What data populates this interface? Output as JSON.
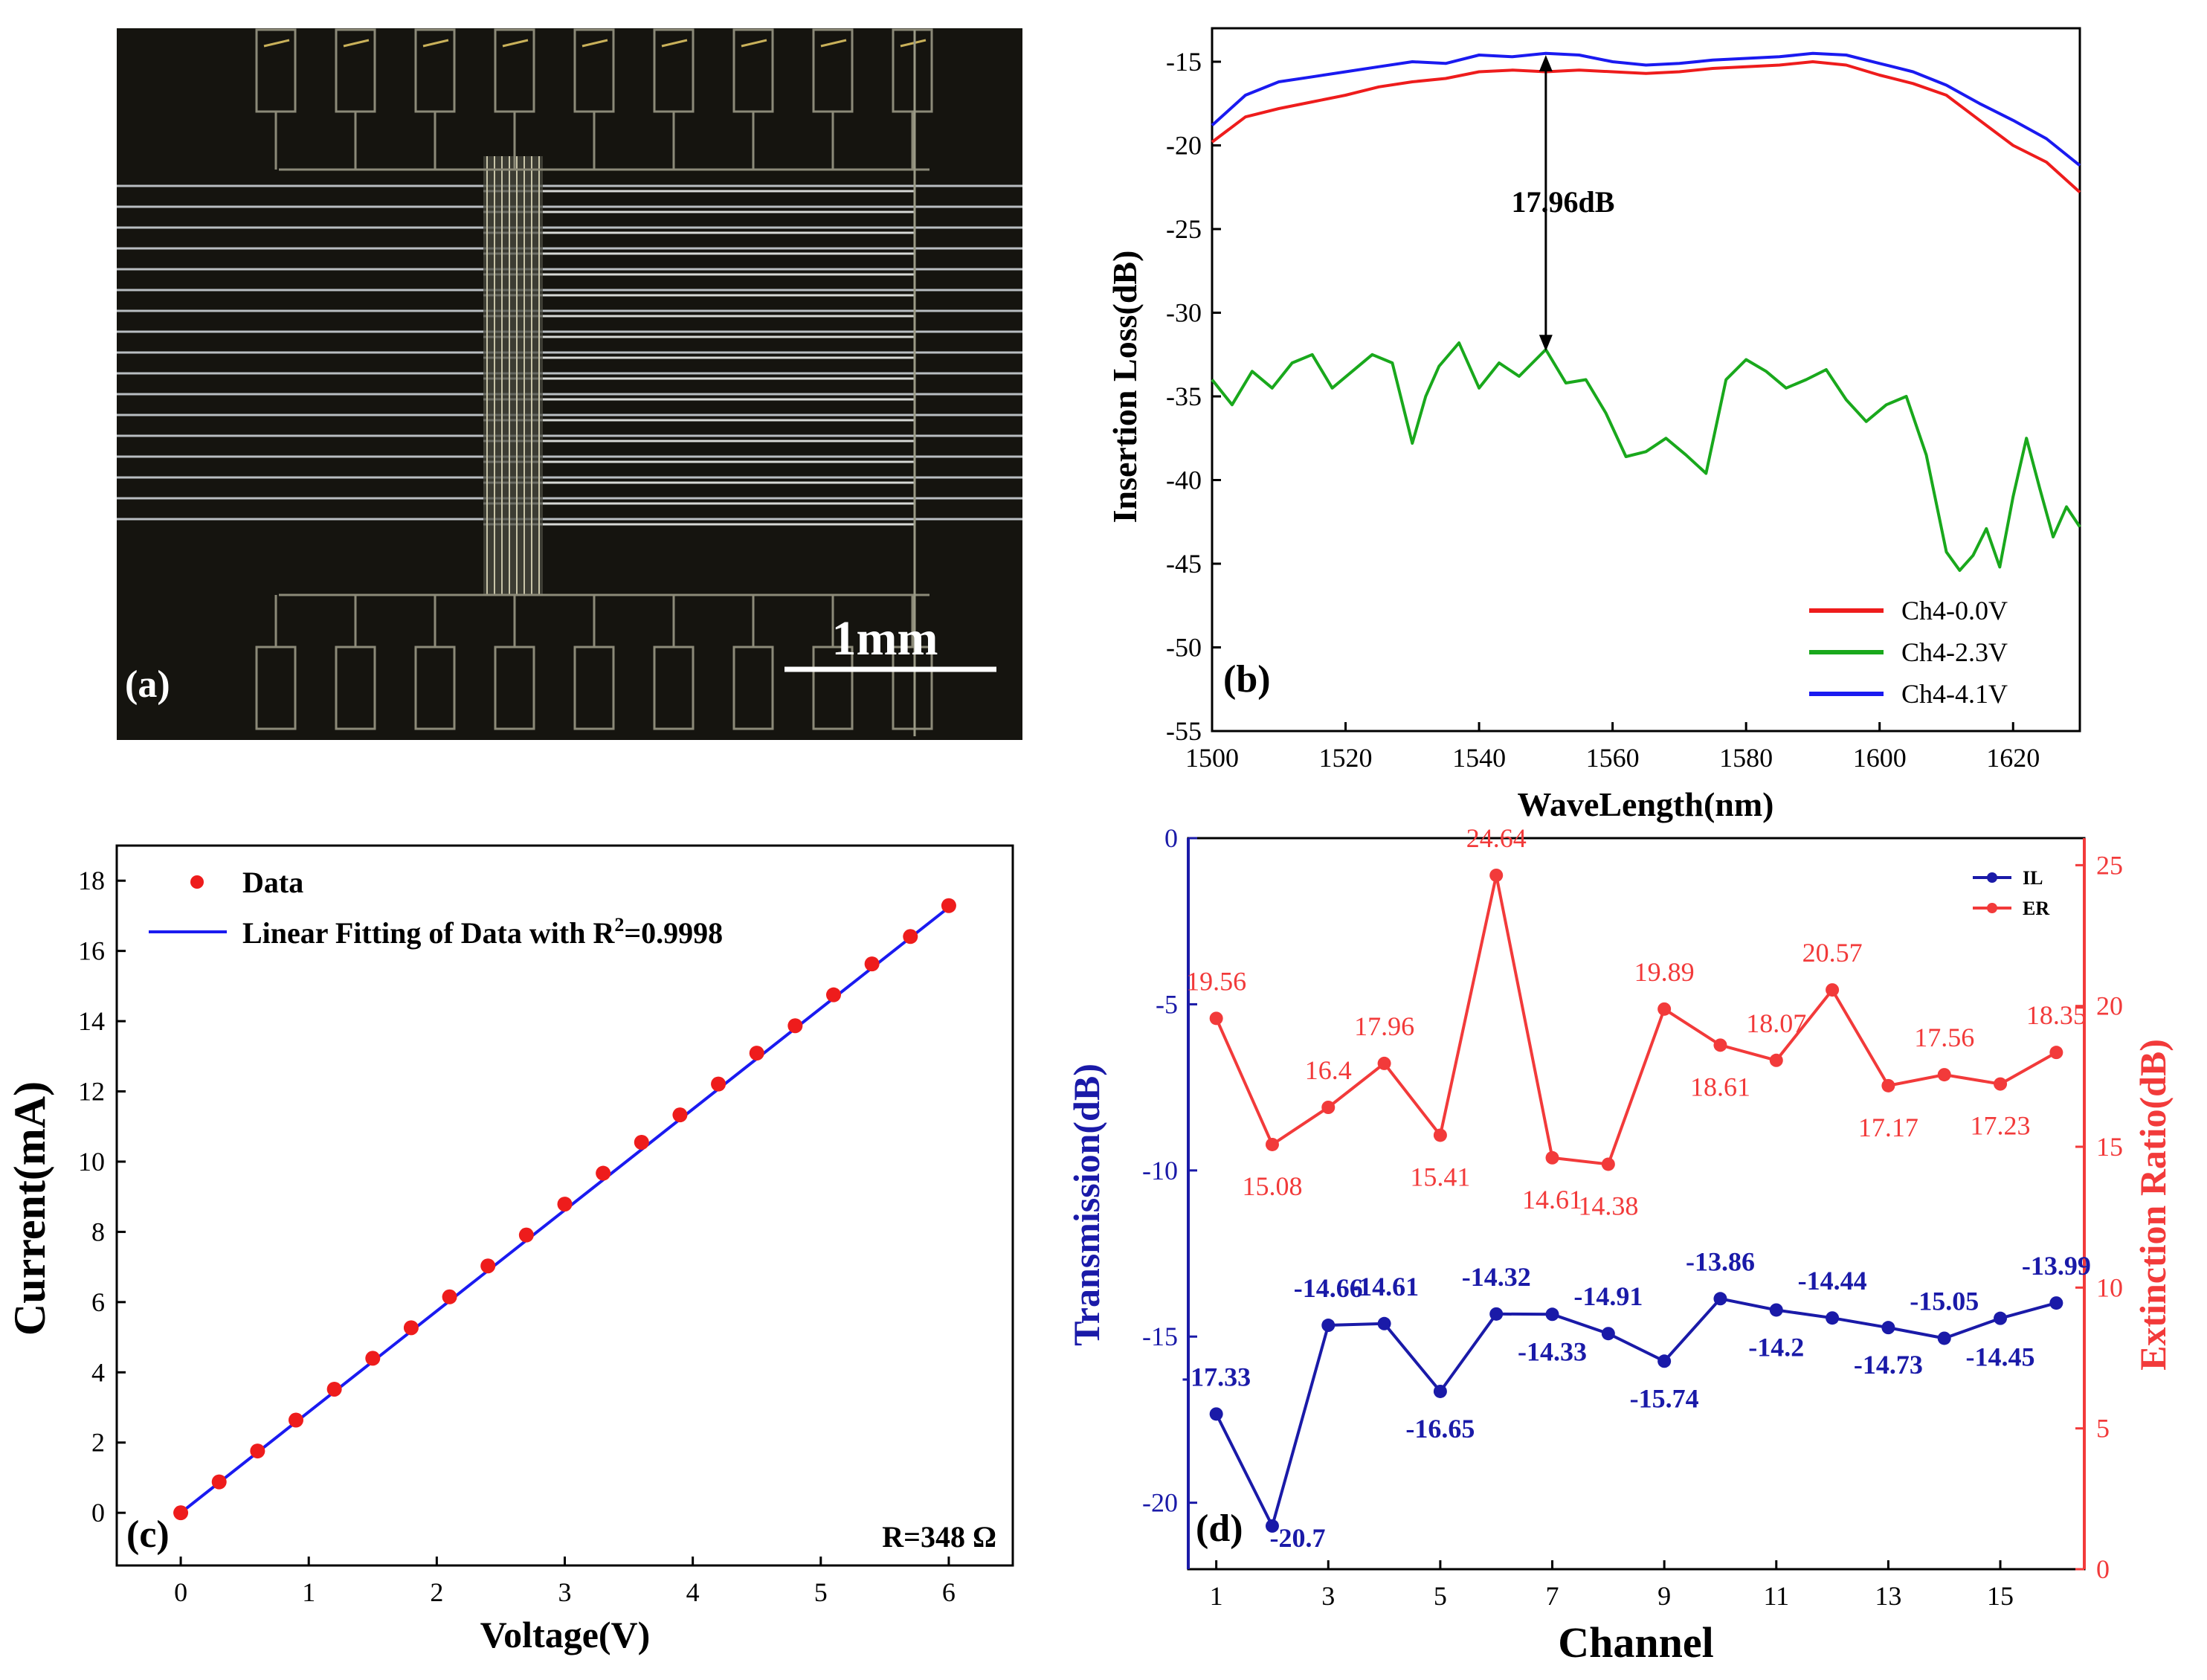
{
  "colors": {
    "red": "#ee1c1c",
    "green": "#19a81c",
    "blue": "#1a1af0",
    "il_blue": "#1a1aa8",
    "er_red": "#f23a3a",
    "photo_bg": "#15140f"
  },
  "chart_data": [
    {
      "id": "a",
      "type": "image",
      "panel_label": "(a)",
      "description_text": "1mm"
    },
    {
      "id": "b",
      "type": "line",
      "panel_label": "(b)",
      "xlabel": "WaveLength(nm)",
      "ylabel": "Insertion Loss(dB)",
      "xlim": [
        1500,
        1630
      ],
      "ylim": [
        -55,
        -13
      ],
      "xticks": [
        1500,
        1520,
        1540,
        1560,
        1580,
        1600,
        1620
      ],
      "yticks": [
        -55,
        -50,
        -45,
        -40,
        -35,
        -30,
        -25,
        -20,
        -15
      ],
      "annotation": {
        "text": "17.96dB",
        "x": 1550,
        "y_top": -14.6,
        "y_bottom": -32.3
      },
      "legend": [
        "Ch4-0.0V",
        "Ch4-2.3V",
        "Ch4-4.1V"
      ],
      "series": [
        {
          "name": "Ch4-0.0V",
          "color_key": "red",
          "x": [
            1500,
            1505,
            1510,
            1515,
            1520,
            1525,
            1530,
            1535,
            1540,
            1545,
            1550,
            1555,
            1560,
            1565,
            1570,
            1575,
            1580,
            1585,
            1590,
            1595,
            1600,
            1605,
            1610,
            1615,
            1620,
            1625,
            1630
          ],
          "y": [
            -19.8,
            -18.3,
            -17.8,
            -17.4,
            -17.0,
            -16.5,
            -16.2,
            -16.0,
            -15.6,
            -15.5,
            -15.6,
            -15.5,
            -15.6,
            -15.7,
            -15.6,
            -15.4,
            -15.3,
            -15.2,
            -15.0,
            -15.2,
            -15.8,
            -16.3,
            -17.0,
            -18.5,
            -20.0,
            -21.0,
            -22.8
          ]
        },
        {
          "name": "Ch4-2.3V",
          "color_key": "green",
          "x": [
            1500,
            1503,
            1506,
            1509,
            1512,
            1515,
            1518,
            1521,
            1524,
            1527,
            1530,
            1532,
            1534,
            1537,
            1540,
            1543,
            1546,
            1550,
            1553,
            1556,
            1559,
            1562,
            1565,
            1568,
            1571,
            1574,
            1577,
            1580,
            1583,
            1586,
            1589,
            1592,
            1595,
            1598,
            1601,
            1604,
            1607,
            1610,
            1612,
            1614,
            1616,
            1618,
            1620,
            1622,
            1624,
            1626,
            1628,
            1630
          ],
          "y": [
            -34,
            -35.5,
            -33.5,
            -34.5,
            -33,
            -32.5,
            -34.5,
            -33.5,
            -32.5,
            -33,
            -37.8,
            -35,
            -33.2,
            -31.8,
            -34.5,
            -33,
            -33.8,
            -32.2,
            -34.2,
            -34,
            -36,
            -38.6,
            -38.3,
            -37.5,
            -38.5,
            -39.6,
            -34,
            -32.8,
            -33.5,
            -34.5,
            -34,
            -33.4,
            -35.2,
            -36.5,
            -35.5,
            -35,
            -38.5,
            -44.3,
            -45.4,
            -44.5,
            -42.9,
            -45.2,
            -41,
            -37.5,
            -40.5,
            -43.4,
            -41.6,
            -42.8
          ]
        },
        {
          "name": "Ch4-4.1V",
          "color_key": "blue",
          "x": [
            1500,
            1505,
            1510,
            1515,
            1520,
            1525,
            1530,
            1535,
            1540,
            1545,
            1550,
            1555,
            1560,
            1565,
            1570,
            1575,
            1580,
            1585,
            1590,
            1595,
            1600,
            1605,
            1610,
            1615,
            1620,
            1625,
            1630
          ],
          "y": [
            -18.8,
            -17.0,
            -16.2,
            -15.9,
            -15.6,
            -15.3,
            -15.0,
            -15.1,
            -14.6,
            -14.7,
            -14.5,
            -14.6,
            -15.0,
            -15.2,
            -15.1,
            -14.9,
            -14.8,
            -14.7,
            -14.5,
            -14.6,
            -15.1,
            -15.6,
            -16.4,
            -17.5,
            -18.5,
            -19.6,
            -21.2
          ]
        }
      ]
    },
    {
      "id": "c",
      "type": "scatter",
      "panel_label": "(c)",
      "xlabel": "Voltage(V)",
      "ylabel": "Current(mA)",
      "xlim": [
        -0.5,
        6.5
      ],
      "ylim": [
        -1.5,
        19
      ],
      "xticks": [
        0,
        1,
        2,
        3,
        4,
        5,
        6
      ],
      "yticks": [
        0,
        2,
        4,
        6,
        8,
        10,
        12,
        14,
        16,
        18
      ],
      "legend": [
        "Data",
        "Linear Fitting of Data with R",
        "2",
        "=0.9998"
      ],
      "resistance_label": "R=348 Ω",
      "x": [
        0,
        0.3,
        0.6,
        0.9,
        1.2,
        1.5,
        1.8,
        2.1,
        2.4,
        2.7,
        3.0,
        3.3,
        3.6,
        3.9,
        4.2,
        4.5,
        4.8,
        5.1,
        5.4,
        5.7,
        6.0
      ],
      "y": [
        0,
        0.88,
        1.76,
        2.64,
        3.52,
        4.4,
        5.27,
        6.15,
        7.03,
        7.91,
        8.79,
        9.67,
        10.55,
        11.33,
        12.21,
        13.09,
        13.87,
        14.75,
        15.63,
        16.41,
        17.29
      ],
      "fit": {
        "x": [
          0,
          6
        ],
        "y": [
          0,
          17.24
        ]
      }
    },
    {
      "id": "d",
      "type": "line",
      "panel_label": "(d)",
      "xlabel": "Channel",
      "ylabel_left": "Transmission(dB)",
      "ylabel_right": "Extinction Ratio(dB)",
      "xlim": [
        0.5,
        16.5
      ],
      "ylim_left": [
        -22,
        0
      ],
      "ylim_right": [
        0,
        25.96
      ],
      "xticks": [
        1,
        3,
        5,
        7,
        9,
        11,
        13,
        15
      ],
      "yticks_left": [
        -20,
        -15,
        -10,
        -5,
        0
      ],
      "yticks_right": [
        0,
        5,
        10,
        15,
        20,
        25
      ],
      "legend": [
        "IL",
        "ER"
      ],
      "channels": [
        1,
        2,
        3,
        4,
        5,
        6,
        7,
        8,
        9,
        10,
        11,
        12,
        13,
        14,
        15,
        16
      ],
      "series": [
        {
          "name": "IL",
          "color_key": "il_blue",
          "values": [
            -17.33,
            -20.7,
            -14.66,
            -14.61,
            -16.65,
            -14.32,
            -14.33,
            -14.91,
            -15.74,
            -13.86,
            -14.2,
            -14.44,
            -14.73,
            -15.05,
            -14.45,
            -13.99
          ],
          "labels": [
            "-17.33",
            "-20.7",
            "-14.66",
            "-14.61",
            "-16.65",
            "-14.32",
            "-14.33",
            "-14.91",
            "-15.74",
            "-13.86",
            "-14.2",
            "-14.44",
            "-14.73",
            "-15.05",
            "-14.45",
            "-13.99"
          ]
        },
        {
          "name": "ER",
          "color_key": "er_red",
          "values": [
            19.56,
            15.08,
            16.4,
            17.96,
            15.41,
            24.64,
            14.61,
            14.38,
            19.89,
            18.61,
            18.07,
            20.57,
            17.17,
            17.56,
            17.23,
            18.35
          ],
          "labels": [
            "19.56",
            "15.08",
            "16.4",
            "17.96",
            "15.41",
            "24.64",
            "14.61",
            "14.38",
            "19.89",
            "18.61",
            "18.07",
            "20.57",
            "17.17",
            "17.56",
            "17.23",
            "18.35"
          ]
        }
      ]
    }
  ]
}
